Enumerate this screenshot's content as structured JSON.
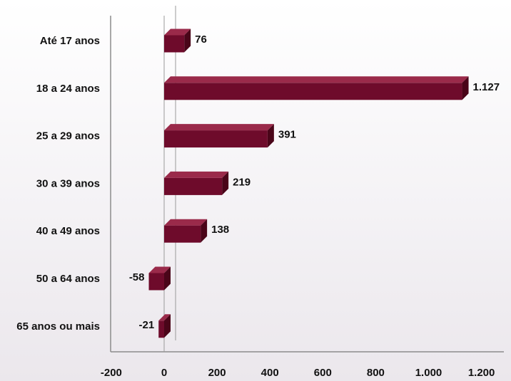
{
  "chart_data": {
    "type": "bar",
    "orientation": "horizontal",
    "categories": [
      "Até 17 anos",
      "18  a 24 anos",
      "25 a 29 anos",
      "30 a 39 anos",
      "40 a 49 anos",
      "50 a 64 anos",
      "65 anos ou mais"
    ],
    "values": [
      76,
      1127,
      391,
      219,
      138,
      -58,
      -21
    ],
    "value_labels": [
      "76",
      "1.127",
      "391",
      "219",
      "138",
      "-58",
      "-21"
    ],
    "x_ticks": [
      -200,
      0,
      200,
      400,
      600,
      800,
      1000,
      1200
    ],
    "x_tick_labels": [
      "-200",
      "0",
      "200",
      "400",
      "600",
      "800",
      "1.000",
      "1.200"
    ],
    "xlim": [
      -200,
      1200
    ],
    "grid": false,
    "legend": "none",
    "bar_color": "#6e0b2b",
    "bar_top_color": "#9a2a4a",
    "bar_side_color": "#4a0519"
  }
}
